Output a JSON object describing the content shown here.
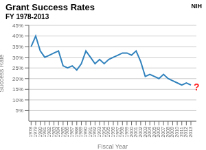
{
  "chart_data": {
    "type": "line",
    "title": "Grant Success Rates",
    "subtitle": "FY 1978-2013",
    "x_label": "Fiscal Year",
    "y_label": "Success Rate",
    "x": [
      1978,
      1979,
      1980,
      1981,
      1982,
      1983,
      1984,
      1985,
      1986,
      1987,
      1988,
      1989,
      1990,
      1991,
      1992,
      1993,
      1994,
      1995,
      1996,
      1997,
      1998,
      1999,
      2000,
      2001,
      2002,
      2003,
      2004,
      2005,
      2006,
      2007,
      2008,
      2009,
      2010,
      2011,
      2012,
      2013
    ],
    "values": [
      35,
      40,
      33,
      30,
      31,
      32,
      33,
      26,
      25,
      26,
      24,
      27,
      33,
      30,
      27,
      29,
      27,
      29,
      30,
      31,
      32,
      32,
      31,
      33,
      28,
      21,
      22,
      21,
      20,
      22,
      20,
      19,
      18,
      17,
      18,
      17
    ],
    "xlim": [
      1977.5,
      2014.2
    ],
    "xticks": [
      1978,
      1979,
      1980,
      1981,
      1982,
      1983,
      1984,
      1985,
      1986,
      1987,
      1988,
      1989,
      1990,
      1991,
      1992,
      1993,
      1994,
      1995,
      1996,
      1997,
      1998,
      1999,
      2000,
      2001,
      2002,
      2003,
      2004,
      2005,
      2006,
      2007,
      2008,
      2009,
      2010,
      2011,
      2012,
      2013
    ],
    "ylim": [
      0,
      45
    ],
    "yticks": [
      {
        "value": 5,
        "label": "5%"
      },
      {
        "value": 10,
        "label": "10%"
      },
      {
        "value": 15,
        "label": "15%"
      },
      {
        "value": 20,
        "label": "20%"
      },
      {
        "value": 25,
        "label": "25%"
      },
      {
        "value": 30,
        "label": "30%"
      },
      {
        "value": 35,
        "label": "35%"
      },
      {
        "value": 40,
        "label": "40%"
      },
      {
        "value": 45,
        "label": "45%"
      }
    ],
    "grid": true,
    "annotations": [
      {
        "text": "?",
        "x": 2013.6,
        "y": 16.2,
        "color": "#FF2222"
      },
      {
        "text": "NIH"
      }
    ]
  }
}
